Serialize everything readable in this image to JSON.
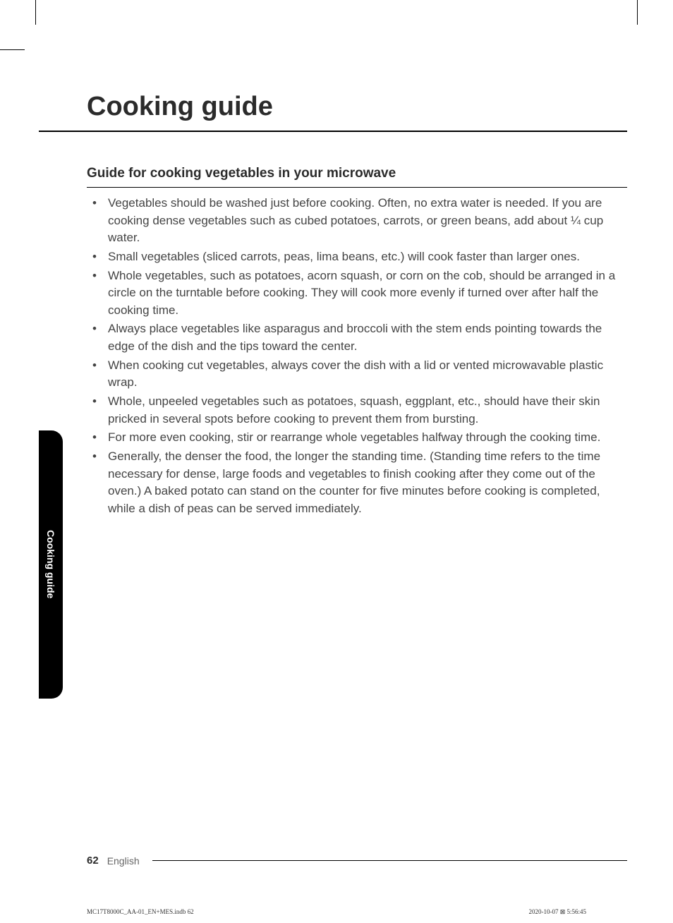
{
  "page_title": "Cooking guide",
  "section_heading": "Guide for cooking vegetables in your microwave",
  "bullets": [
    "Vegetables should be washed just before cooking. Often, no extra water is needed. If you are cooking dense vegetables such as cubed potatoes, carrots, or green beans, add about ¼ cup water.",
    "Small vegetables (sliced carrots, peas, lima beans, etc.) will cook faster than larger ones.",
    "Whole vegetables, such as potatoes, acorn squash, or corn on the cob, should be arranged in a circle on the turntable before cooking. They will cook more evenly if turned over after half the cooking time.",
    "Always place vegetables like asparagus and broccoli with the stem ends pointing towards the edge of the dish and the tips toward the center.",
    "When cooking cut vegetables, always cover the dish with a lid or vented microwavable plastic wrap.",
    "Whole, unpeeled vegetables such as potatoes, squash, eggplant, etc., should have their skin pricked in several spots before cooking to prevent them from bursting.",
    "For more even cooking, stir or rearrange whole vegetables halfway through the cooking time.",
    "Generally, the denser the food, the longer the standing time. (Standing time refers to the time necessary for dense, large foods and vegetables to finish cooking after they come out of the oven.) A baked potato can stand on the counter for five minutes before cooking is completed, while a dish of peas can be served immediately."
  ],
  "side_tab": "Cooking guide",
  "footer": {
    "page_number": "62",
    "language": "English"
  },
  "imprint": {
    "left": "MC17T8000C_AA-01_EN+MES.indb   62",
    "right": "2020-10-07   ⊠ 5:56:45"
  },
  "colors": {
    "text": "#3a3a3a",
    "heading": "#2b2b2b",
    "rule": "#000000",
    "tab_bg": "#000000",
    "tab_text": "#ffffff",
    "muted": "#666666",
    "background": "#ffffff"
  },
  "typography": {
    "title_fontsize": 38,
    "section_fontsize": 19,
    "body_fontsize": 17,
    "footer_fontsize": 15,
    "imprint_fontsize": 9
  }
}
